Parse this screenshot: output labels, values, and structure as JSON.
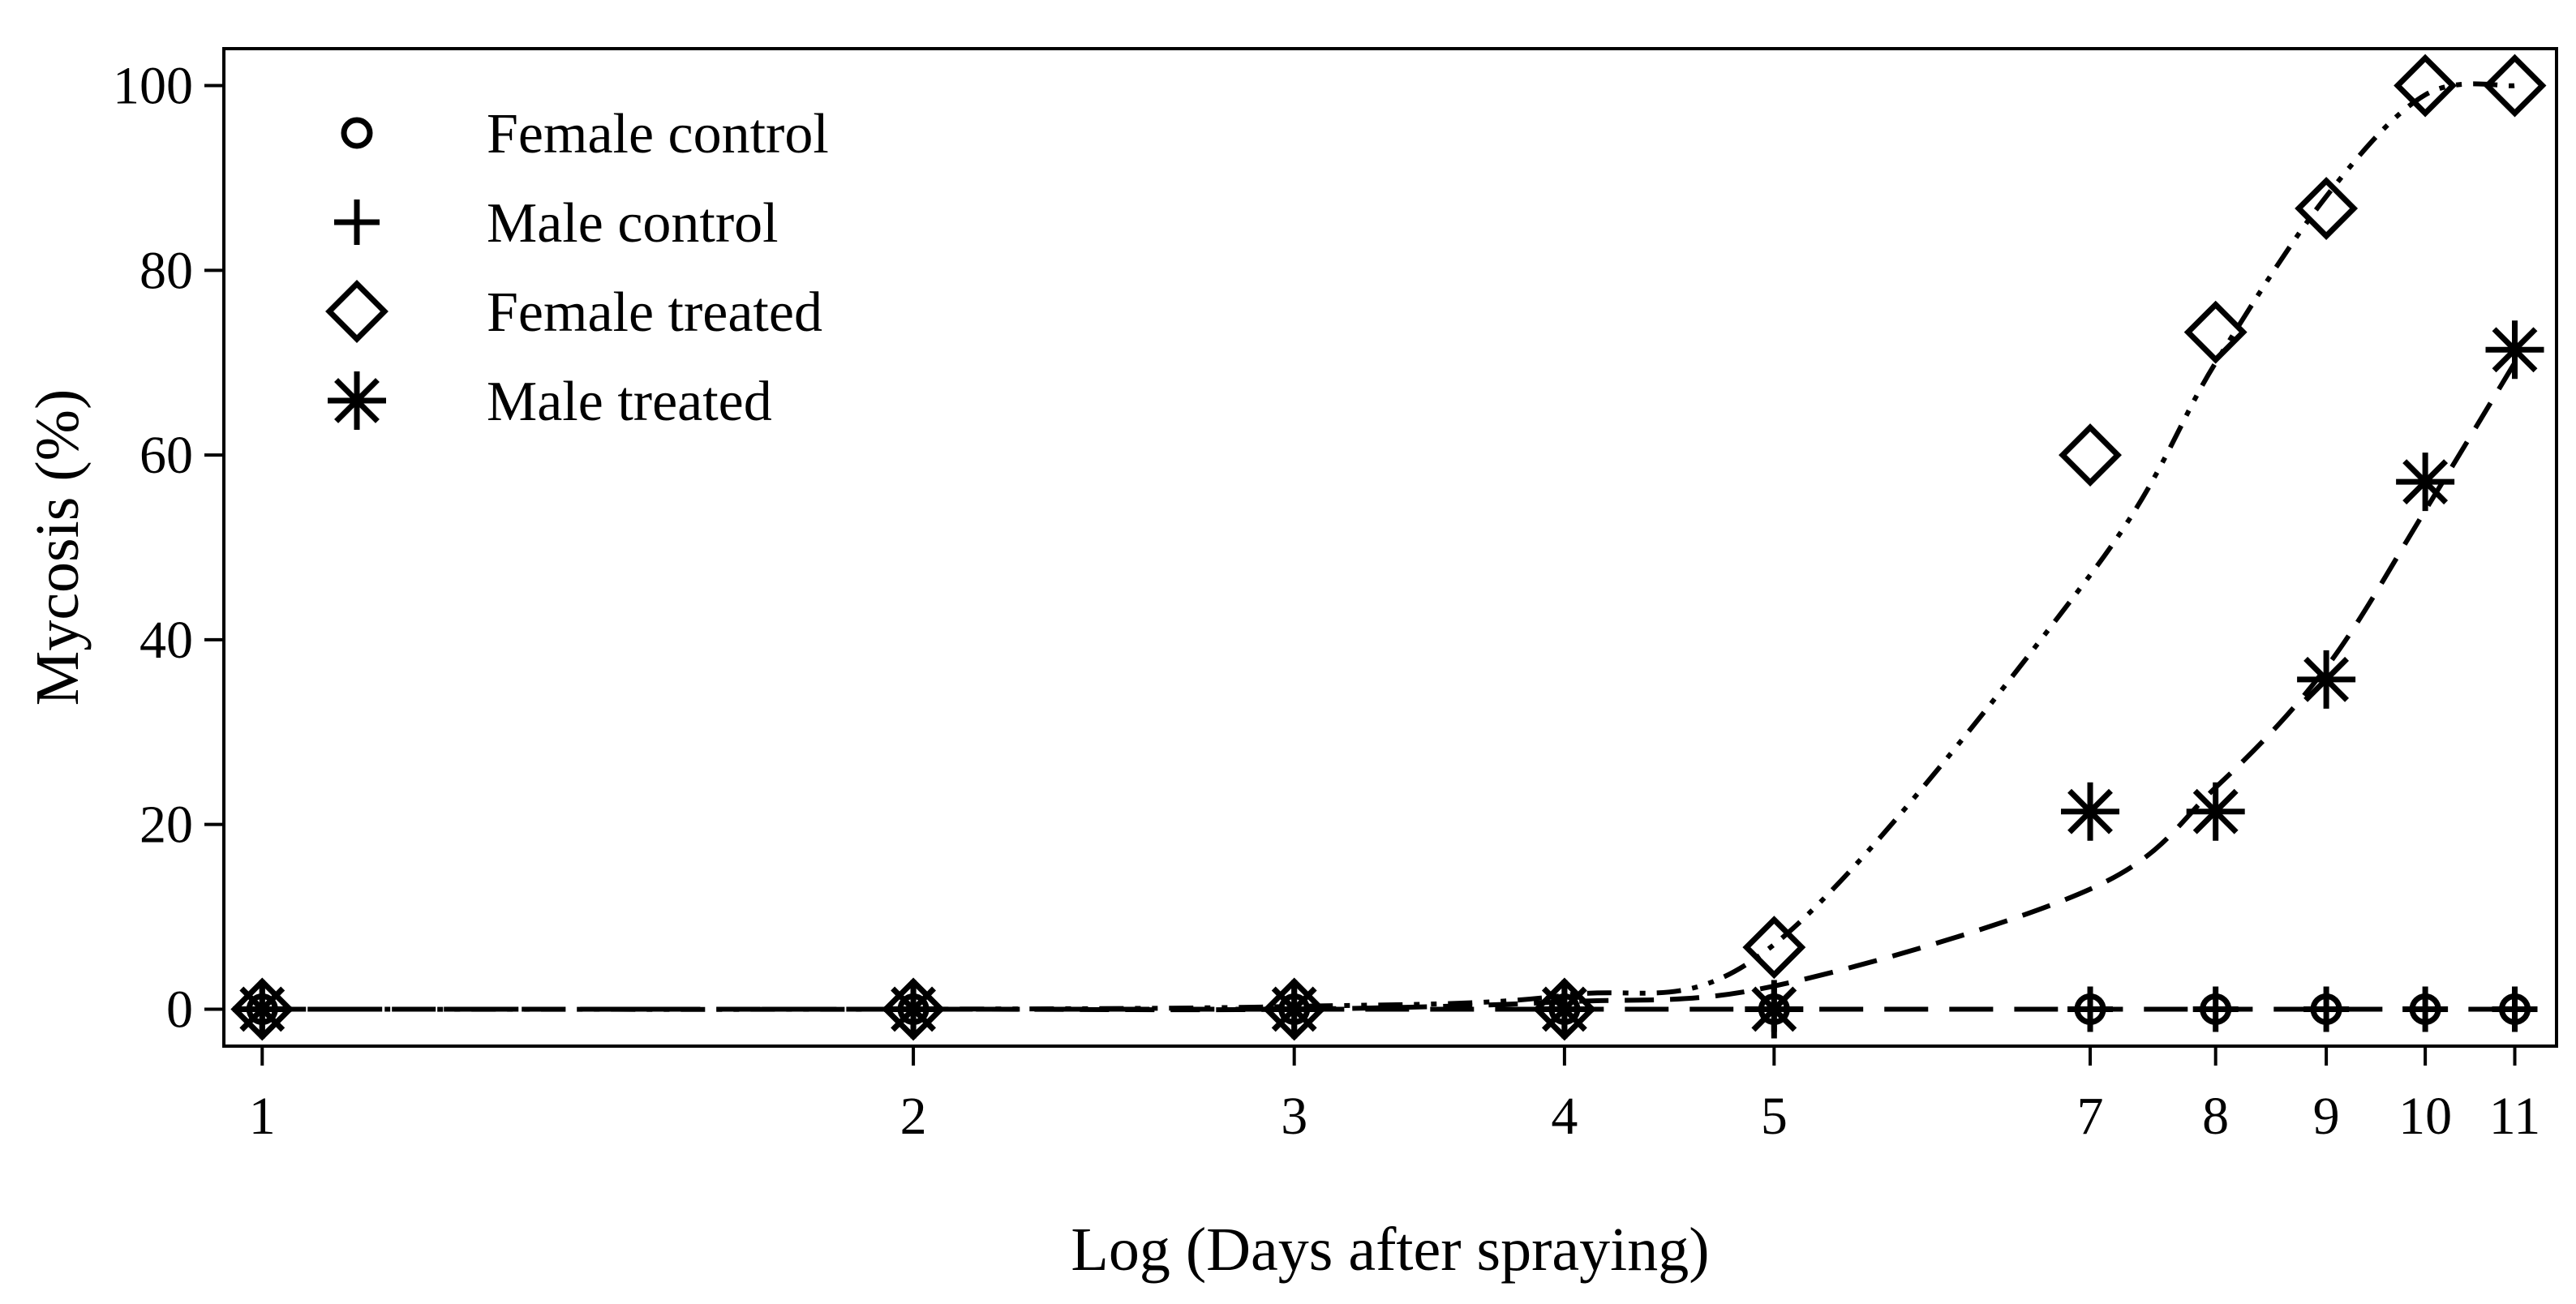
{
  "chart_data": {
    "type": "scatter",
    "xscale": "log",
    "xlabel": "Log (Days after spraying)",
    "ylabel": "Mycosis (%)",
    "xlim": [
      0.96,
      11.5
    ],
    "ylim": [
      -4,
      104
    ],
    "xticks": [
      1,
      2,
      3,
      4,
      5,
      7,
      8,
      9,
      10,
      11
    ],
    "yticks": [
      0,
      20,
      40,
      60,
      80,
      100
    ],
    "legend_position": "top-left",
    "grid": false,
    "series": [
      {
        "name": "Female control",
        "marker": "circle",
        "x": [
          1,
          2,
          3,
          4,
          5,
          7,
          8,
          9,
          10,
          11
        ],
        "y": [
          0,
          0,
          0,
          0,
          0,
          0,
          0,
          0,
          0,
          0
        ],
        "fit": [
          0,
          0,
          0,
          0,
          0,
          0,
          0,
          0,
          0,
          0
        ],
        "line_style": "long-dash"
      },
      {
        "name": "Male control",
        "marker": "plus",
        "x": [
          1,
          2,
          3,
          4,
          5,
          7,
          8,
          9,
          10,
          11
        ],
        "y": [
          0,
          0,
          0,
          0,
          0,
          0,
          0,
          0,
          0,
          0
        ],
        "line_style": "none"
      },
      {
        "name": "Female treated",
        "marker": "diamond",
        "x": [
          1,
          2,
          3,
          4,
          5,
          7,
          8,
          9,
          10,
          11
        ],
        "y": [
          0,
          0,
          0,
          0,
          6.7,
          60,
          73.3,
          86.7,
          100,
          100
        ],
        "fit": [
          0,
          0,
          0.3,
          1.5,
          7,
          47,
          70,
          88,
          99,
          100
        ],
        "line_style": "dash-dot-dot"
      },
      {
        "name": "Male treated",
        "marker": "asterisk",
        "x": [
          1,
          2,
          3,
          4,
          5,
          7,
          8,
          9,
          10,
          11
        ],
        "y": [
          0,
          0,
          0,
          0,
          0,
          21.4,
          21.4,
          35.7,
          57.1,
          71.4
        ],
        "fit": [
          0,
          0,
          0,
          0.8,
          2.5,
          13,
          24,
          37,
          54,
          70
        ],
        "line_style": "dash"
      }
    ]
  }
}
